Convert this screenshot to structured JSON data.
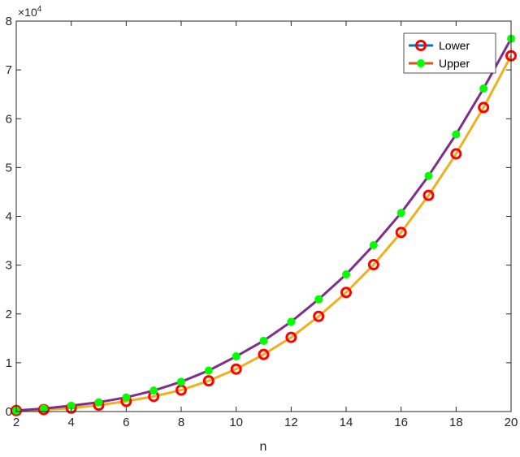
{
  "chart_data": {
    "type": "line",
    "title": "",
    "xlabel": "n",
    "ylabel": "",
    "y_exponent_label": "×10",
    "y_exponent_power": "4",
    "xlim": [
      2,
      20
    ],
    "ylim": [
      0,
      8
    ],
    "xticks": [
      2,
      4,
      6,
      8,
      10,
      12,
      14,
      16,
      18,
      20
    ],
    "yticks": [
      0,
      1,
      2,
      3,
      4,
      5,
      6,
      7,
      8
    ],
    "grid": false,
    "legend_position": "top-right",
    "x": [
      2,
      3,
      4,
      5,
      6,
      7,
      8,
      9,
      10,
      11,
      12,
      13,
      14,
      15,
      16,
      17,
      18,
      19,
      20
    ],
    "series": [
      {
        "name": "Lower",
        "legend_color": "#0072BD",
        "line_color": "#EDB120",
        "marker": "open-circle",
        "marker_color": "#FF0000",
        "values": [
          0.02,
          0.04,
          0.07,
          0.13,
          0.21,
          0.31,
          0.44,
          0.63,
          0.87,
          1.17,
          1.52,
          1.95,
          2.44,
          3.01,
          3.67,
          4.43,
          5.28,
          6.23,
          7.29
        ]
      },
      {
        "name": "Upper",
        "legend_color": "#D95319",
        "line_color": "#7E2F8E",
        "marker": "filled-dot",
        "marker_color": "#00FF00",
        "values": [
          0.02,
          0.06,
          0.12,
          0.19,
          0.29,
          0.43,
          0.61,
          0.84,
          1.13,
          1.45,
          1.84,
          2.3,
          2.81,
          3.41,
          4.07,
          4.83,
          5.68,
          6.62,
          7.64
        ]
      }
    ]
  }
}
